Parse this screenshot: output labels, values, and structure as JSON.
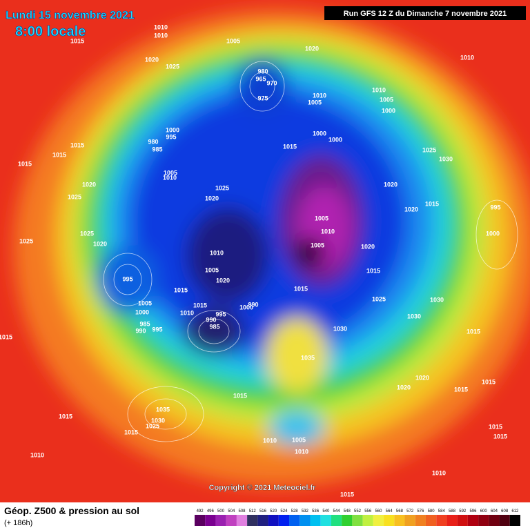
{
  "header": {
    "title": "Lundi 15 novembre 2021",
    "time": "8:00 locale",
    "run": "Run GFS 12 Z du Dimanche 7 novembre 2021"
  },
  "copyright": "Copyright © 2021 Meteociel.fr",
  "footer": {
    "field": "Géop. Z500 & pression au sol",
    "lead": "(+ 186h)"
  },
  "legend": {
    "values": [
      492,
      496,
      500,
      504,
      508,
      512,
      516,
      520,
      524,
      528,
      532,
      536,
      540,
      544,
      548,
      552,
      556,
      560,
      564,
      568,
      572,
      576,
      580,
      584,
      588,
      592,
      596,
      600,
      604,
      608,
      612
    ],
    "colors": [
      "#5a0060",
      "#7a0090",
      "#9a20b0",
      "#c040c0",
      "#e080e0",
      "#303060",
      "#202080",
      "#1010c0",
      "#0020f0",
      "#0060f0",
      "#0090f0",
      "#00c0f0",
      "#20e0e0",
      "#20e080",
      "#30d030",
      "#80e040",
      "#c0f040",
      "#f0f040",
      "#f8e020",
      "#f8c020",
      "#f0a020",
      "#f08020",
      "#f06020",
      "#f04020",
      "#e82018",
      "#d01010",
      "#b00010",
      "#900010",
      "#700010",
      "#500010",
      "#000000"
    ]
  },
  "isobar_labels": [
    1010,
    1010,
    1015,
    1005,
    1020,
    1010,
    1020,
    1025,
    980,
    965,
    970,
    975,
    1010,
    1005,
    1010,
    1005,
    1000,
    1000,
    995,
    980,
    985,
    1000,
    1000,
    1015,
    1015,
    1015,
    1015,
    1025,
    1030,
    1005,
    1010,
    1020,
    1025,
    1020,
    1020,
    1025,
    1015,
    1020,
    995,
    1005,
    1010,
    1025,
    1020,
    1025,
    1005,
    1020,
    1000,
    1010,
    1005,
    1020,
    995,
    1015,
    1015,
    1015,
    990,
    1025,
    1030,
    1005,
    1000,
    1015,
    1000,
    995,
    1010,
    990,
    985,
    1030,
    1030,
    985,
    990,
    995,
    1015,
    1015,
    1035,
    1020,
    1020,
    1015,
    1015,
    1015,
    1035,
    1015,
    1030,
    1025,
    1015,
    1010,
    1005,
    1010,
    1015,
    1015,
    1010,
    1010,
    1015
  ]
}
